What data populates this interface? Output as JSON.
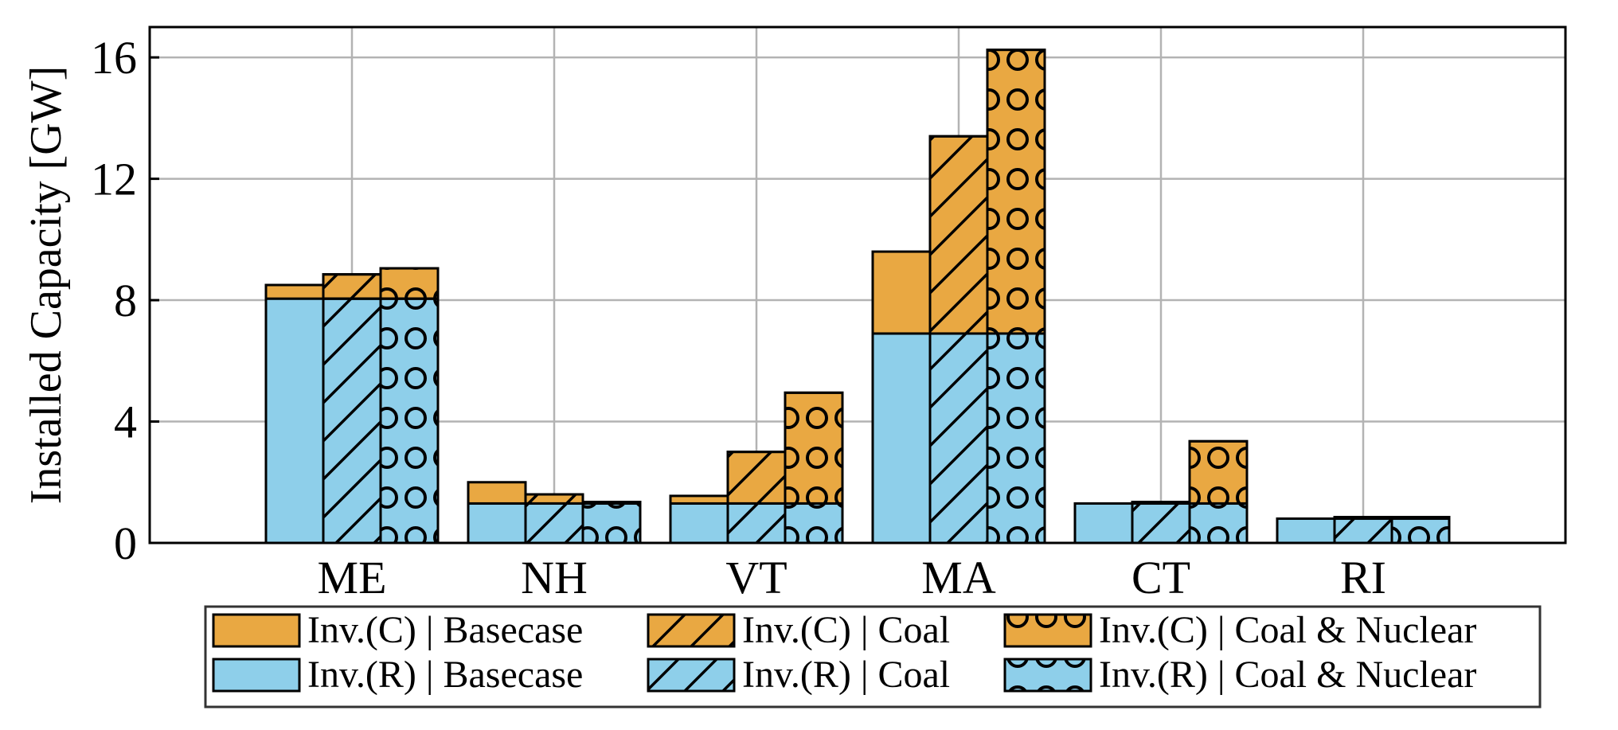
{
  "chart_data": {
    "type": "bar",
    "stacked": true,
    "grouped": true,
    "title": "",
    "xlabel": "",
    "ylabel": "Installed Capacity [GW]",
    "ylim": [
      0,
      17
    ],
    "yticks": [
      0,
      4,
      8,
      12,
      16
    ],
    "grid": true,
    "categories": [
      "ME",
      "NH",
      "VT",
      "MA",
      "CT",
      "RI"
    ],
    "scenarios": [
      {
        "name": "Basecase",
        "pattern": "none",
        "inv_r": [
          8.05,
          1.3,
          1.3,
          6.9,
          1.3,
          0.8
        ],
        "inv_c": [
          0.45,
          0.7,
          0.25,
          2.7,
          0.0,
          0.0
        ]
      },
      {
        "name": "Coal",
        "pattern": "hatch",
        "inv_r": [
          8.05,
          1.3,
          1.3,
          6.9,
          1.3,
          0.8
        ],
        "inv_c": [
          0.8,
          0.3,
          1.7,
          6.5,
          0.05,
          0.05
        ]
      },
      {
        "name": "Coal & Nuclear",
        "pattern": "circles",
        "inv_r": [
          8.05,
          1.3,
          1.3,
          6.9,
          1.3,
          0.8
        ],
        "inv_c": [
          1.0,
          0.05,
          3.65,
          9.35,
          2.05,
          0.05
        ]
      }
    ],
    "colors": {
      "inv_c": "#E9A842",
      "inv_r": "#8ECFEA"
    },
    "legend": {
      "placement": "bottom",
      "entries": [
        {
          "label": "Inv.(C) | Basecase",
          "series": "inv_c",
          "pattern": "none"
        },
        {
          "label": "Inv.(C) | Coal",
          "series": "inv_c",
          "pattern": "hatch"
        },
        {
          "label": "Inv.(C) | Coal & Nuclear",
          "series": "inv_c",
          "pattern": "circles"
        },
        {
          "label": "Inv.(R) | Basecase",
          "series": "inv_r",
          "pattern": "none"
        },
        {
          "label": "Inv.(R) | Coal",
          "series": "inv_r",
          "pattern": "hatch"
        },
        {
          "label": "Inv.(R) | Coal & Nuclear",
          "series": "inv_r",
          "pattern": "circles"
        }
      ]
    }
  }
}
